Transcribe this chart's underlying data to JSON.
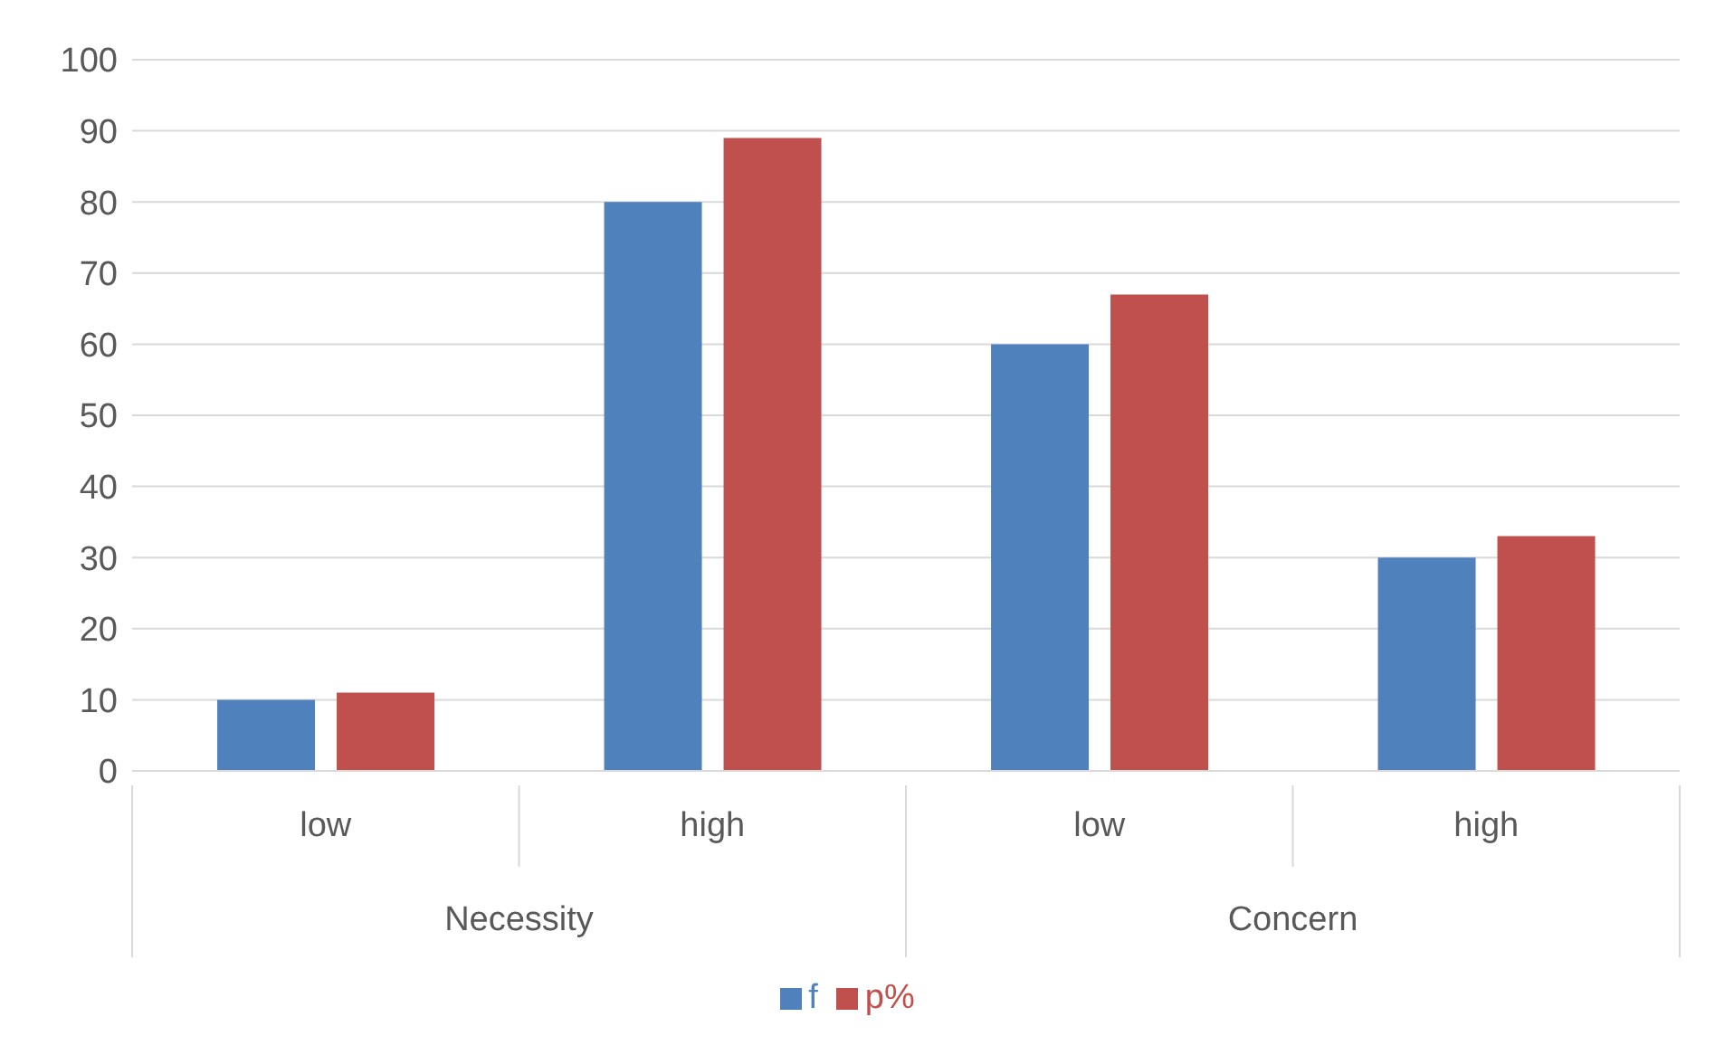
{
  "chart_data": {
    "type": "bar",
    "categories": [
      "low",
      "high",
      "low",
      "high"
    ],
    "series": [
      {
        "name": "f",
        "color": "#4f81bd",
        "values": [
          10,
          80,
          60,
          30
        ]
      },
      {
        "name": "p%",
        "color": "#c0504d",
        "values": [
          11,
          89,
          67,
          33
        ]
      }
    ],
    "annotations": [
      "Necessity",
      "Concern"
    ],
    "ylim": [
      0,
      100
    ],
    "yticks": [
      0,
      10,
      20,
      30,
      40,
      50,
      60,
      70,
      80,
      90,
      100
    ],
    "grid": "y",
    "legend": "bottom"
  }
}
